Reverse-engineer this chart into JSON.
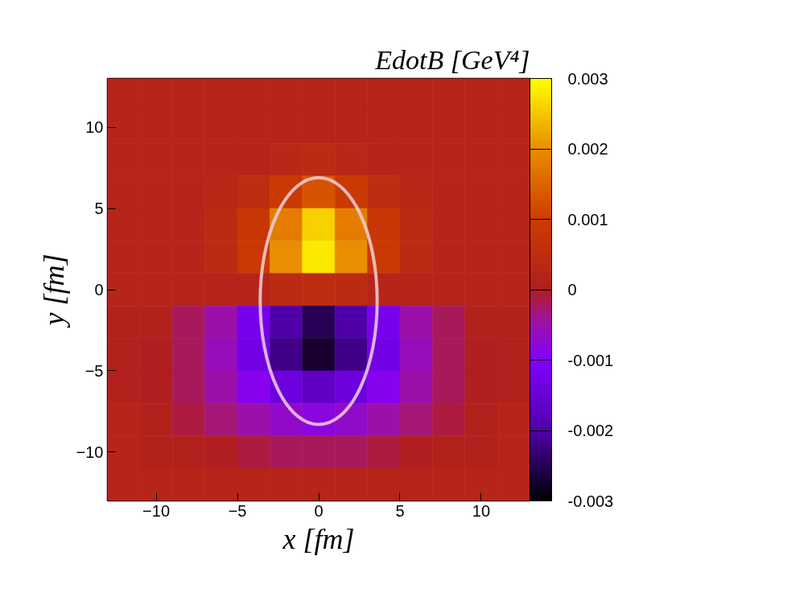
{
  "chart_data": {
    "type": "heatmap",
    "xlabel": "x [fm]",
    "ylabel": "y [fm]",
    "clabel": "EdotB [GeV⁴]",
    "xlim": [
      -13,
      13
    ],
    "ylim": [
      -13,
      13
    ],
    "xticks": [
      -10,
      -5,
      0,
      5,
      10
    ],
    "yticks": [
      -10,
      -5,
      0,
      5,
      10
    ],
    "clim": [
      -0.003,
      0.003
    ],
    "cticks": [
      -0.003,
      -0.002,
      -0.001,
      0,
      0.001,
      0.002,
      0.003
    ],
    "grid": false,
    "cells": [
      [
        0.0002,
        0.0002,
        0.0002,
        0.0002,
        0.0002,
        0.0002,
        0.0002,
        0.0002,
        0.0002,
        0.0002,
        0.0002,
        0.0002,
        0.0002
      ],
      [
        0.0002,
        0.0002,
        0.0002,
        0.0002,
        0.0002,
        0.0002,
        0.0002,
        0.0002,
        0.0002,
        0.0002,
        0.0002,
        0.0002,
        0.0002
      ],
      [
        0.0002,
        0.0002,
        0.0002,
        0.0002,
        0.0002,
        0.0003,
        0.0004,
        0.0003,
        0.0002,
        0.0002,
        0.0002,
        0.0002,
        0.0002
      ],
      [
        0.0002,
        0.0002,
        0.0002,
        0.0003,
        0.0005,
        0.0009,
        0.0013,
        0.0009,
        0.0005,
        0.0003,
        0.0002,
        0.0002,
        0.0002
      ],
      [
        0.0002,
        0.0002,
        0.0002,
        0.0004,
        0.0008,
        0.0018,
        0.0026,
        0.0018,
        0.0008,
        0.0004,
        0.0002,
        0.0002,
        0.0002
      ],
      [
        0.0002,
        0.0002,
        0.0002,
        0.0004,
        0.0009,
        0.002,
        0.0028,
        0.002,
        0.0009,
        0.0004,
        0.0002,
        0.0002,
        0.0002
      ],
      [
        0.0002,
        0.0002,
        0.0002,
        0.0002,
        0.0002,
        0.0004,
        0.0005,
        0.0004,
        0.0002,
        0.0002,
        0.0002,
        0.0002,
        0.0002
      ],
      [
        0.0001,
        0.0001,
        -0.0002,
        -0.0005,
        -0.0012,
        -0.002,
        -0.0025,
        -0.002,
        -0.0012,
        -0.0005,
        -0.0002,
        0.0001,
        0.0001
      ],
      [
        0.0001,
        0,
        -0.0002,
        -0.0006,
        -0.0013,
        -0.0022,
        -0.0027,
        -0.0022,
        -0.0013,
        -0.0006,
        -0.0002,
        0,
        0.0001
      ],
      [
        0.0001,
        0,
        -0.0002,
        -0.0005,
        -0.0009,
        -0.0014,
        -0.0017,
        -0.0014,
        -0.0009,
        -0.0005,
        -0.0002,
        0,
        0.0001
      ],
      [
        0.0002,
        0.0001,
        -0.0001,
        -0.0003,
        -0.0005,
        -0.0007,
        -0.0008,
        -0.0007,
        -0.0005,
        -0.0003,
        -0.0001,
        0.0001,
        0.0002
      ],
      [
        0.0002,
        0.0001,
        0.0001,
        0,
        -0.0001,
        -0.0002,
        -0.0002,
        -0.0002,
        -0.0001,
        0,
        0.0001,
        0.0001,
        0.0002
      ],
      [
        0.0002,
        0.0002,
        0.0002,
        0.0002,
        0.0002,
        0.0002,
        0.0002,
        0.0002,
        0.0002,
        0.0002,
        0.0002,
        0.0002,
        0.0002
      ]
    ]
  }
}
